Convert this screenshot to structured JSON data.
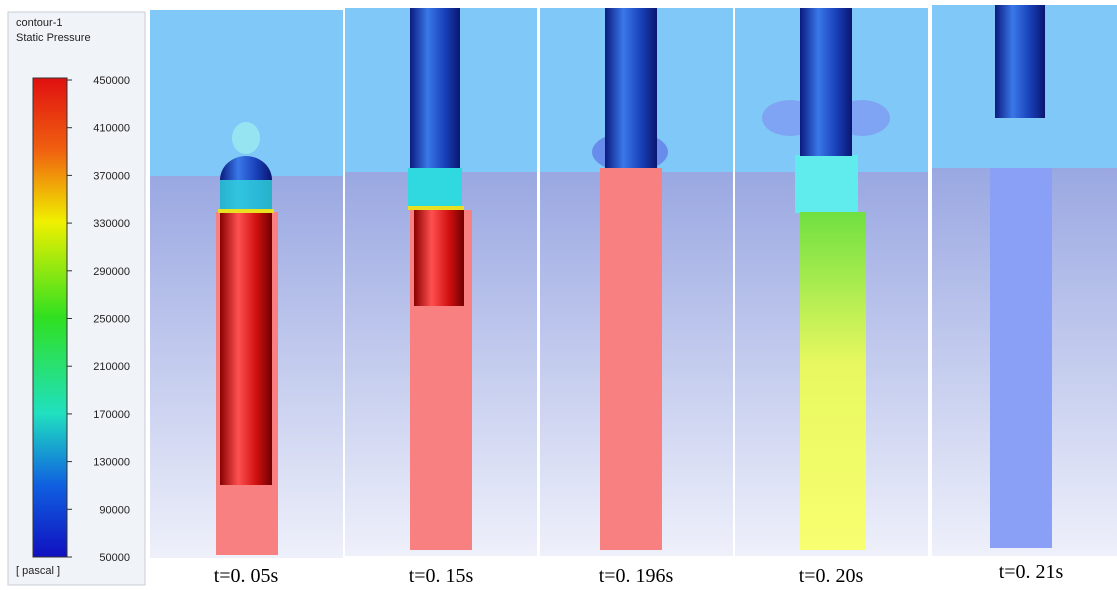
{
  "legend": {
    "title": [
      "contour-1",
      "Static Pressure"
    ],
    "ticks": [
      450000,
      410000,
      370000,
      330000,
      290000,
      250000,
      210000,
      170000,
      130000,
      90000,
      50000
    ],
    "unit": "[ pascal ]"
  },
  "panels": [
    {
      "label": "t=0. 05s"
    },
    {
      "label": "t=0. 15s"
    },
    {
      "label": "t=0. 196s"
    },
    {
      "label": "t=0. 20s"
    },
    {
      "label": "t=0. 21s"
    }
  ]
}
